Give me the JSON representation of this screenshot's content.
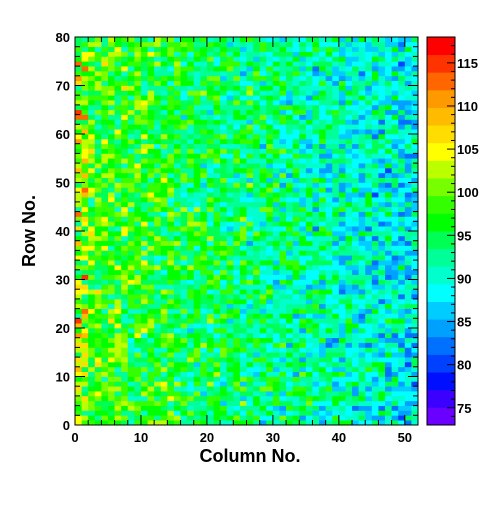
{
  "chart_data": {
    "type": "heatmap",
    "title": "",
    "xlabel": "Column No.",
    "ylabel": "Row No.",
    "xlim": [
      0,
      52
    ],
    "ylim": [
      0,
      80
    ],
    "x_ticks": [
      0,
      10,
      20,
      30,
      40,
      50
    ],
    "y_ticks": [
      0,
      10,
      20,
      30,
      40,
      50,
      60,
      70,
      80
    ],
    "n_columns": 52,
    "n_rows": 80,
    "zlim": [
      73,
      118
    ],
    "colorbar_ticks": [
      75,
      80,
      85,
      90,
      95,
      100,
      105,
      110,
      115
    ],
    "color_scale": [
      "#6a00ff",
      "#3c00ff",
      "#0010ff",
      "#0040ff",
      "#0070ff",
      "#00a0ff",
      "#00ccff",
      "#00ffff",
      "#00ffcc",
      "#00ff99",
      "#00ff55",
      "#00ff00",
      "#33ff00",
      "#77ff00",
      "#bbff00",
      "#ffff00",
      "#ffdd00",
      "#ffbb00",
      "#ff9900",
      "#ff6600",
      "#ff3300",
      "#ff0000"
    ],
    "trend": {
      "value_at_column_0": 99,
      "value_at_column_52": 88,
      "noise_amplitude": 6
    },
    "grid": false,
    "legend": "colorbar-right"
  }
}
